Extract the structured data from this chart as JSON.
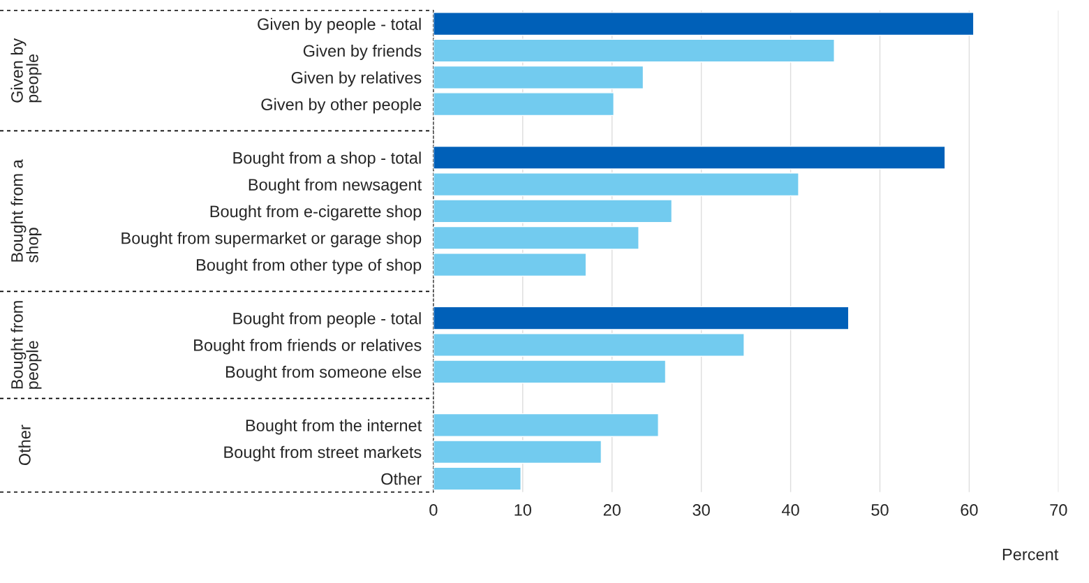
{
  "chart_data": {
    "type": "bar",
    "orientation": "horizontal",
    "xlabel": "Percent",
    "categories": [
      "Given by people - total",
      "Given by friends",
      "Given by relatives",
      "Given by other people",
      null,
      "Bought from a shop - total",
      "Bought from newsagent",
      "Bought from e-cigarette shop",
      "Bought from supermarket or garage shop",
      "Bought from other type of shop",
      null,
      "Bought from people - total",
      "Bought from friends or relatives",
      "Bought from someone else",
      null,
      "Bought from the internet",
      "Bought from street markets",
      "Other"
    ],
    "values": [
      60.5,
      44.9,
      23.5,
      20.2,
      null,
      57.3,
      40.9,
      26.7,
      23.0,
      17.1,
      null,
      46.5,
      34.8,
      26.0,
      null,
      25.2,
      18.8,
      9.8
    ],
    "colors": [
      "#0060b8",
      "#72cbef",
      "#72cbef",
      "#72cbef",
      null,
      "#0060b8",
      "#72cbef",
      "#72cbef",
      "#72cbef",
      "#72cbef",
      null,
      "#0060b8",
      "#72cbef",
      "#72cbef",
      null,
      "#72cbef",
      "#72cbef",
      "#72cbef"
    ],
    "annotations": [
      "Given by people",
      "Bought from a shop",
      "Bought from people",
      "Other"
    ],
    "xlim": [
      0,
      70
    ],
    "xticks": [
      0,
      10,
      20,
      30,
      40,
      50,
      60,
      70
    ],
    "grid": "x"
  }
}
